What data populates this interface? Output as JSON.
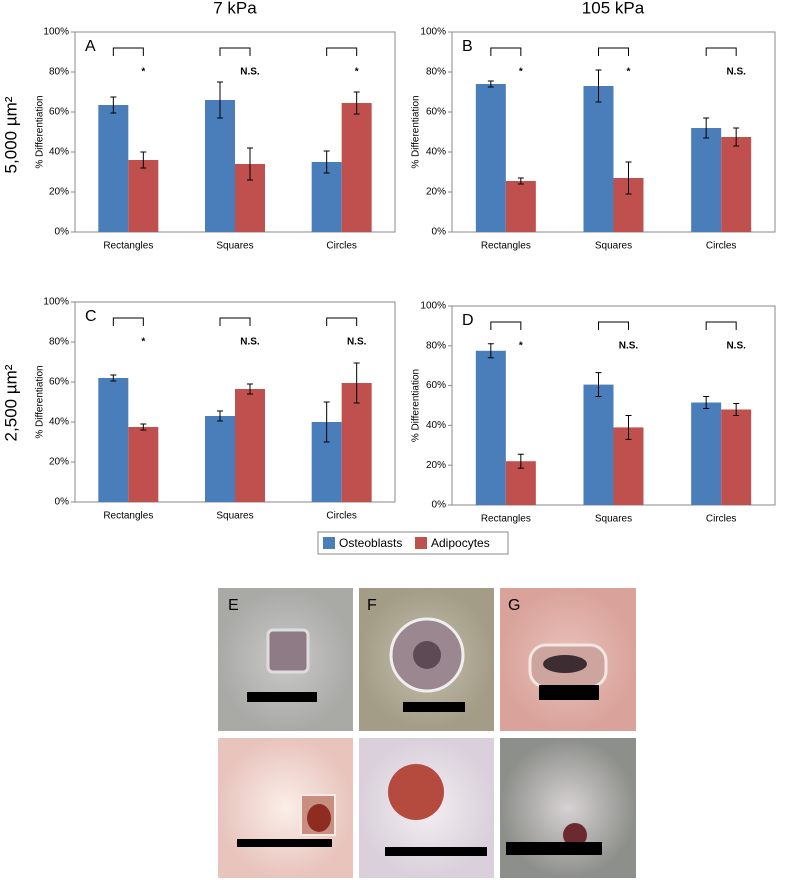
{
  "column_headers": [
    "7 kPa",
    "105 kPa"
  ],
  "row_headers": [
    "5,000 µm²",
    "2,500 µm²"
  ],
  "image_labels": [
    "E",
    "F",
    "G"
  ],
  "chart_data": [
    {
      "type": "bar",
      "panel_label": "A",
      "y_label": "% Differentiation",
      "categories": [
        "Rectangles",
        "Squares",
        "Circles"
      ],
      "series": [
        {
          "name": "Osteoblasts",
          "color": "#4a7ebb",
          "values": [
            63.5,
            66,
            35
          ],
          "errors": [
            4,
            9,
            5.5
          ]
        },
        {
          "name": "Adipocytes",
          "color": "#c0504d",
          "values": [
            36,
            34,
            64.5
          ],
          "errors": [
            4,
            8,
            5.5
          ]
        }
      ],
      "significance": [
        "*",
        "N.S.",
        "*"
      ],
      "ylim": [
        0,
        100
      ],
      "yticks": [
        {
          "value": 0,
          "label": "0%"
        },
        {
          "value": 20,
          "label": "20%"
        },
        {
          "value": 40,
          "label": "40%"
        },
        {
          "value": 60,
          "label": "60%"
        },
        {
          "value": 80,
          "label": "80%"
        },
        {
          "value": 100,
          "label": "100%"
        }
      ]
    },
    {
      "type": "bar",
      "panel_label": "B",
      "y_label": "% Differentiation",
      "categories": [
        "Rectangles",
        "Squares",
        "Circles"
      ],
      "series": [
        {
          "name": "Osteoblasts",
          "color": "#4a7ebb",
          "values": [
            74,
            73,
            52
          ],
          "errors": [
            1.5,
            8,
            5
          ]
        },
        {
          "name": "Adipocytes",
          "color": "#c0504d",
          "values": [
            25.5,
            27,
            47.5
          ],
          "errors": [
            1.5,
            8,
            4.5
          ]
        }
      ],
      "significance": [
        "*",
        "*",
        "N.S."
      ],
      "ylim": [
        0,
        100
      ],
      "yticks": [
        {
          "value": 0,
          "label": "0%"
        },
        {
          "value": 20,
          "label": "20%"
        },
        {
          "value": 40,
          "label": "40%"
        },
        {
          "value": 60,
          "label": "60%"
        },
        {
          "value": 80,
          "label": "80%"
        },
        {
          "value": 100,
          "label": "100%"
        }
      ]
    },
    {
      "type": "bar",
      "panel_label": "C",
      "y_label": "% Differentiation",
      "categories": [
        "Rectangles",
        "Squares",
        "Circles"
      ],
      "series": [
        {
          "name": "Osteoblasts",
          "color": "#4a7ebb",
          "values": [
            62,
            43,
            40
          ],
          "errors": [
            1.5,
            2.5,
            10
          ]
        },
        {
          "name": "Adipocytes",
          "color": "#c0504d",
          "values": [
            37.5,
            56.5,
            59.5
          ],
          "errors": [
            1.5,
            2.5,
            10
          ]
        }
      ],
      "significance": [
        "*",
        "N.S.",
        "N.S."
      ],
      "ylim": [
        0,
        100
      ],
      "yticks": [
        {
          "value": 0,
          "label": "0%"
        },
        {
          "value": 20,
          "label": "20%"
        },
        {
          "value": 40,
          "label": "40%"
        },
        {
          "value": 60,
          "label": "60%"
        },
        {
          "value": 80,
          "label": "80%"
        },
        {
          "value": 100,
          "label": "100%"
        }
      ]
    },
    {
      "type": "bar",
      "panel_label": "D",
      "y_label": "% Differentiation",
      "categories": [
        "Rectangles",
        "Squares",
        "Circles"
      ],
      "series": [
        {
          "name": "Osteoblasts",
          "color": "#4a7ebb",
          "values": [
            77.5,
            60.5,
            51.5
          ],
          "errors": [
            3.5,
            6,
            3
          ]
        },
        {
          "name": "Adipocytes",
          "color": "#c0504d",
          "values": [
            22,
            39,
            48
          ],
          "errors": [
            3.5,
            6,
            3
          ]
        }
      ],
      "significance": [
        "*",
        "N.S.",
        "N.S."
      ],
      "ylim": [
        0,
        100
      ],
      "yticks": [
        {
          "value": 0,
          "label": "0%"
        },
        {
          "value": 20,
          "label": "20%"
        },
        {
          "value": 40,
          "label": "40%"
        },
        {
          "value": 60,
          "label": "60%"
        },
        {
          "value": 80,
          "label": "80%"
        },
        {
          "value": 100,
          "label": "100%"
        }
      ]
    }
  ]
}
